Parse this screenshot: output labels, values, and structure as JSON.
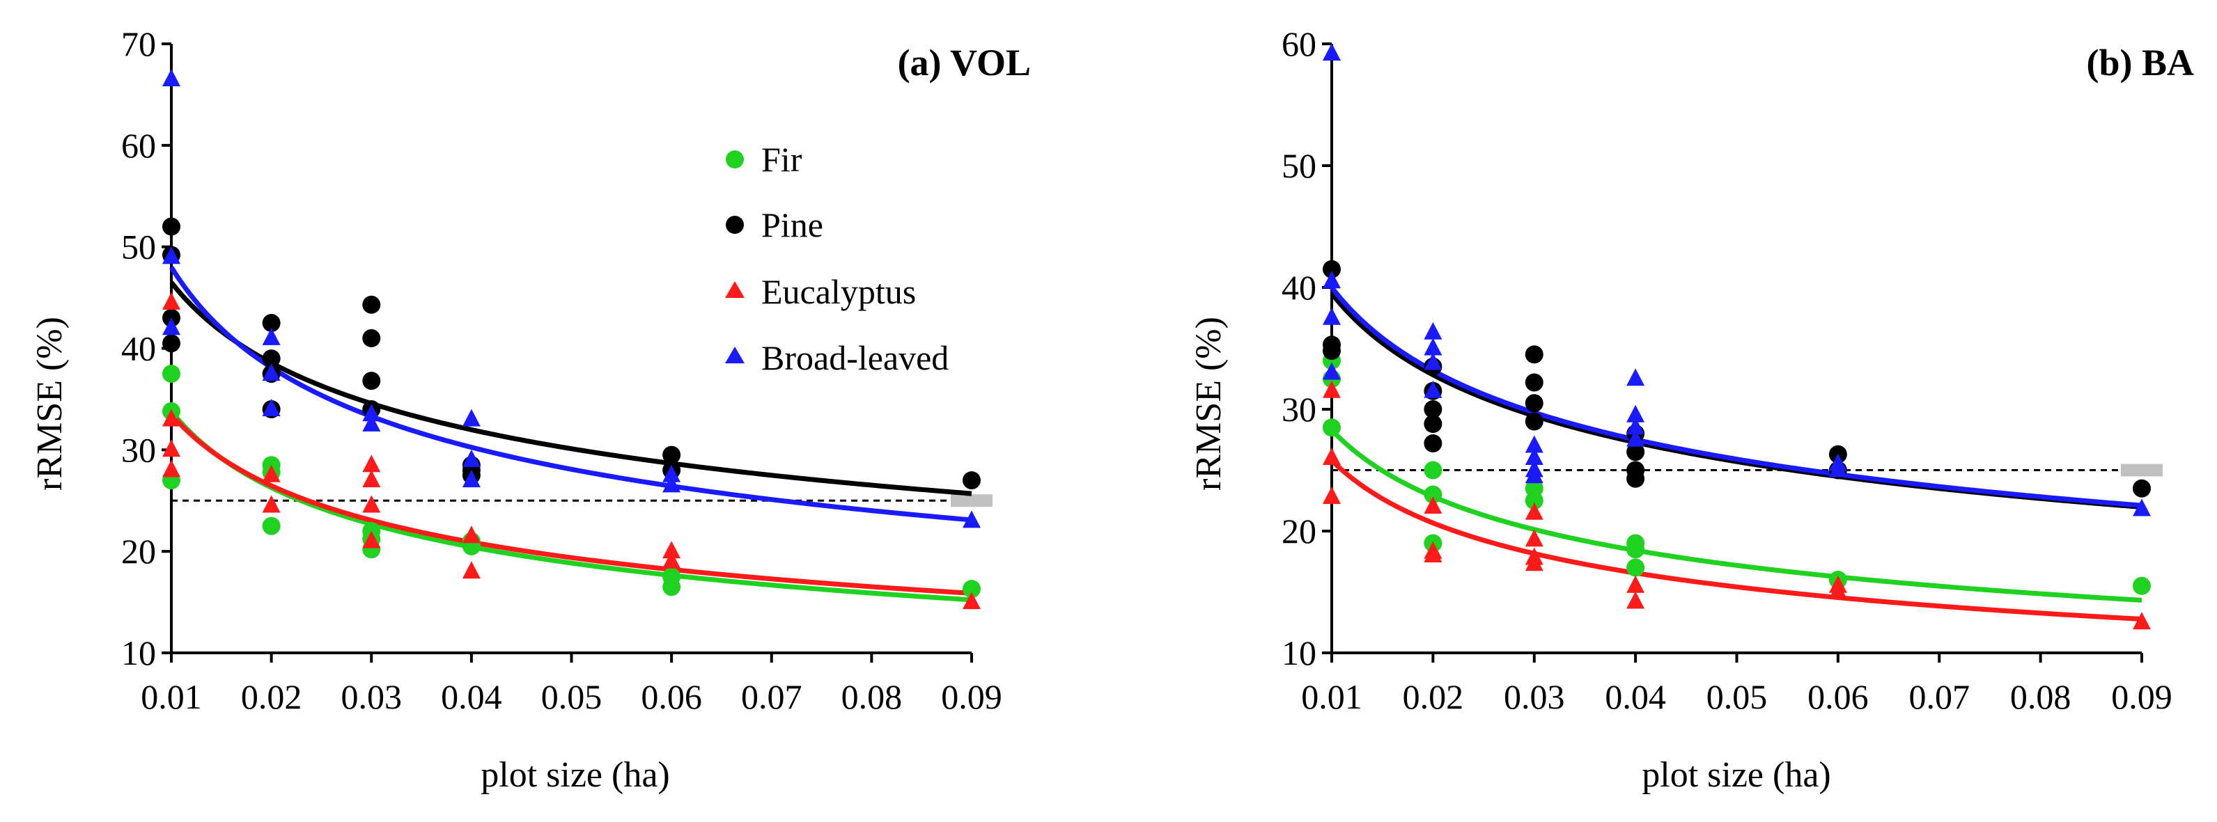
{
  "colors": {
    "Fir": "#1fd21f",
    "Pine": "#000000",
    "Eucalyptus": "#ff1a1a",
    "Broad-leaved": "#1a1aff",
    "threshold_line": "#000000",
    "threshold_marker": "#c0c0c0"
  },
  "legend": {
    "items": [
      {
        "name": "Fir",
        "marker": "circle"
      },
      {
        "name": "Pine",
        "marker": "circle"
      },
      {
        "name": "Eucalyptus",
        "marker": "triangle"
      },
      {
        "name": "Broad-leaved",
        "marker": "triangle"
      }
    ],
    "placement": "upper-right of panel (a)"
  },
  "chart_data": [
    {
      "type": "scatter",
      "title": "(a) VOL",
      "xlabel": "plot size (ha)",
      "ylabel": "rRMSE (%)",
      "xlim": [
        0.01,
        0.09
      ],
      "ylim": [
        10,
        70
      ],
      "xticks": [
        "0.01",
        "0.02",
        "0.03",
        "0.04",
        "0.05",
        "0.06",
        "0.07",
        "0.08",
        "0.09"
      ],
      "yticks": [
        "10",
        "20",
        "30",
        "40",
        "50",
        "60",
        "70"
      ],
      "grid": false,
      "reference_line": {
        "y": 25,
        "style": "dashed"
      },
      "series": [
        {
          "name": "Fir",
          "marker": "circle",
          "points": [
            [
              0.01,
              37.5
            ],
            [
              0.01,
              33.8
            ],
            [
              0.01,
              27.0
            ],
            [
              0.02,
              28.5
            ],
            [
              0.02,
              27.8
            ],
            [
              0.02,
              22.5
            ],
            [
              0.03,
              22.0
            ],
            [
              0.03,
              21.2
            ],
            [
              0.03,
              20.2
            ],
            [
              0.04,
              21.0
            ],
            [
              0.04,
              20.5
            ],
            [
              0.06,
              17.5
            ],
            [
              0.06,
              16.5
            ],
            [
              0.09,
              16.3
            ]
          ],
          "trend": {
            "a": 33.8,
            "b": -0.363
          }
        },
        {
          "name": "Pine",
          "marker": "circle",
          "points": [
            [
              0.01,
              52.0
            ],
            [
              0.01,
              49.2
            ],
            [
              0.01,
              43.0
            ],
            [
              0.01,
              40.5
            ],
            [
              0.02,
              42.5
            ],
            [
              0.02,
              39.0
            ],
            [
              0.02,
              37.5
            ],
            [
              0.02,
              34.0
            ],
            [
              0.03,
              44.3
            ],
            [
              0.03,
              41.0
            ],
            [
              0.03,
              36.8
            ],
            [
              0.03,
              34.0
            ],
            [
              0.04,
              28.5
            ],
            [
              0.04,
              28.0
            ],
            [
              0.04,
              27.5
            ],
            [
              0.06,
              29.5
            ],
            [
              0.06,
              28.0
            ],
            [
              0.09,
              27.0
            ]
          ],
          "trend": {
            "a": 46.5,
            "b": -0.27
          }
        },
        {
          "name": "Eucalyptus",
          "marker": "triangle",
          "points": [
            [
              0.01,
              44.5
            ],
            [
              0.01,
              33.0
            ],
            [
              0.01,
              30.0
            ],
            [
              0.01,
              28.0
            ],
            [
              0.02,
              27.5
            ],
            [
              0.02,
              24.5
            ],
            [
              0.03,
              28.5
            ],
            [
              0.03,
              27.0
            ],
            [
              0.03,
              24.5
            ],
            [
              0.03,
              21.0
            ],
            [
              0.04,
              21.5
            ],
            [
              0.04,
              18.0
            ],
            [
              0.06,
              20.0
            ],
            [
              0.06,
              19.0
            ],
            [
              0.09,
              15.0
            ]
          ],
          "trend": {
            "a": 33.5,
            "b": -0.34
          }
        },
        {
          "name": "Broad-leaved",
          "marker": "triangle",
          "points": [
            [
              0.01,
              66.5
            ],
            [
              0.01,
              49.0
            ],
            [
              0.01,
              42.0
            ],
            [
              0.02,
              41.0
            ],
            [
              0.02,
              37.5
            ],
            [
              0.02,
              34.0
            ],
            [
              0.03,
              33.5
            ],
            [
              0.03,
              32.5
            ],
            [
              0.04,
              33.0
            ],
            [
              0.04,
              29.0
            ],
            [
              0.04,
              27.0
            ],
            [
              0.06,
              27.5
            ],
            [
              0.06,
              26.5
            ],
            [
              0.09,
              23.0
            ]
          ],
          "trend": {
            "a": 48.0,
            "b": -0.333
          }
        }
      ]
    },
    {
      "type": "scatter",
      "title": "(b) BA",
      "xlabel": "plot size (ha)",
      "ylabel": "rRMSE (%)",
      "xlim": [
        0.01,
        0.09
      ],
      "ylim": [
        10,
        60
      ],
      "xticks": [
        "0.01",
        "0.02",
        "0.03",
        "0.04",
        "0.05",
        "0.06",
        "0.07",
        "0.08",
        "0.09"
      ],
      "yticks": [
        "10",
        "20",
        "30",
        "40",
        "50",
        "60"
      ],
      "grid": false,
      "reference_line": {
        "y": 25,
        "style": "dashed"
      },
      "series": [
        {
          "name": "Fir",
          "marker": "circle",
          "points": [
            [
              0.01,
              34.0
            ],
            [
              0.01,
              32.5
            ],
            [
              0.01,
              28.5
            ],
            [
              0.02,
              25.0
            ],
            [
              0.02,
              23.0
            ],
            [
              0.02,
              19.0
            ],
            [
              0.03,
              23.5
            ],
            [
              0.03,
              22.5
            ],
            [
              0.04,
              19.0
            ],
            [
              0.04,
              18.5
            ],
            [
              0.04,
              17.0
            ],
            [
              0.06,
              16.0
            ],
            [
              0.09,
              15.5
            ]
          ],
          "trend": {
            "a": 28.3,
            "b": -0.31
          }
        },
        {
          "name": "Pine",
          "marker": "circle",
          "points": [
            [
              0.01,
              41.5
            ],
            [
              0.01,
              35.3
            ],
            [
              0.01,
              34.8
            ],
            [
              0.02,
              33.5
            ],
            [
              0.02,
              31.5
            ],
            [
              0.02,
              30.0
            ],
            [
              0.02,
              28.8
            ],
            [
              0.02,
              27.2
            ],
            [
              0.03,
              34.5
            ],
            [
              0.03,
              32.2
            ],
            [
              0.03,
              30.5
            ],
            [
              0.03,
              29.0
            ],
            [
              0.04,
              28.0
            ],
            [
              0.04,
              26.5
            ],
            [
              0.04,
              25.0
            ],
            [
              0.04,
              24.3
            ],
            [
              0.06,
              26.3
            ],
            [
              0.06,
              25.0
            ],
            [
              0.09,
              23.5
            ]
          ],
          "trend": {
            "a": 39.5,
            "b": -0.267
          }
        },
        {
          "name": "Eucalyptus",
          "marker": "triangle",
          "points": [
            [
              0.01,
              31.5
            ],
            [
              0.01,
              26.0
            ],
            [
              0.01,
              22.8
            ],
            [
              0.02,
              22.0
            ],
            [
              0.02,
              18.3
            ],
            [
              0.02,
              18.0
            ],
            [
              0.03,
              21.5
            ],
            [
              0.03,
              19.3
            ],
            [
              0.03,
              17.8
            ],
            [
              0.03,
              17.3
            ],
            [
              0.04,
              15.5
            ],
            [
              0.04,
              14.2
            ],
            [
              0.06,
              15.5
            ],
            [
              0.06,
              15.0
            ],
            [
              0.09,
              12.5
            ]
          ],
          "trend": {
            "a": 25.8,
            "b": -0.32
          }
        },
        {
          "name": "Broad-leaved",
          "marker": "triangle",
          "points": [
            [
              0.01,
              59.2
            ],
            [
              0.01,
              40.5
            ],
            [
              0.01,
              37.5
            ],
            [
              0.01,
              33.0
            ],
            [
              0.02,
              36.3
            ],
            [
              0.02,
              35.0
            ],
            [
              0.02,
              33.8
            ],
            [
              0.02,
              31.5
            ],
            [
              0.03,
              27.0
            ],
            [
              0.03,
              26.0
            ],
            [
              0.03,
              25.0
            ],
            [
              0.03,
              24.5
            ],
            [
              0.04,
              32.5
            ],
            [
              0.04,
              29.5
            ],
            [
              0.04,
              28.5
            ],
            [
              0.04,
              27.5
            ],
            [
              0.06,
              25.5
            ],
            [
              0.06,
              25.0
            ],
            [
              0.09,
              21.8
            ]
          ],
          "trend": {
            "a": 40.0,
            "b": -0.27
          }
        }
      ]
    }
  ]
}
